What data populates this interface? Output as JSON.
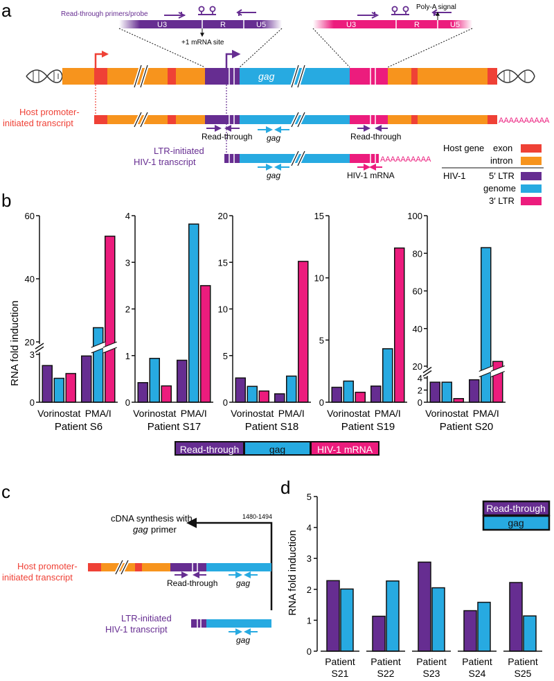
{
  "colors": {
    "exon": "#ef4136",
    "intron": "#f7941d",
    "ltr5": "#662d91",
    "genome": "#27aae1",
    "ltr3": "#ec1c7d",
    "host_label": "#ef4136",
    "hiv_label": "#662d91"
  },
  "panel_a": {
    "label": "a",
    "primers_label": "Read-through primers/probe",
    "u3": "U3",
    "r": "R",
    "u5": "U5",
    "mrna_site": "+1 mRNA site",
    "polya": "Poly-A signal",
    "gag": "gag",
    "host_transcript_line1": "Host promoter-",
    "host_transcript_line2": "initiated transcript",
    "ltr_transcript_line1": "LTR-initiated",
    "ltr_transcript_line2": "HIV-1 transcript",
    "read_through": "Read-through",
    "hiv_mrna": "HIV-1 mRNA",
    "polya_tail_host": "AAAAAAAAAA",
    "polya_tail_ltr": "AAAAAAAAAA",
    "legend": {
      "host_gene": "Host gene",
      "exon": "exon",
      "intron": "intron",
      "hiv1": "HIV-1",
      "ltr5": "5′ LTR",
      "genome": "genome",
      "ltr3": "3′ LTR"
    }
  },
  "panel_b": {
    "label": "b",
    "ylabel": "RNA fold induction",
    "legend": [
      "Read-through",
      "gag",
      "HIV-1 mRNA"
    ]
  },
  "panel_c": {
    "label": "c",
    "cdna_line1": "cDNA synthesis with",
    "cdna_line2": "primer",
    "cdna_gag": "gag",
    "position": "1480-1494",
    "host_line1": "Host promoter-",
    "host_line2": "initiated transcript",
    "ltr_line1": "LTR-initiated",
    "ltr_line2": "HIV-1 transcript",
    "read_through": "Read-through",
    "gag": "gag"
  },
  "panel_d": {
    "label": "d",
    "ylabel": "RNA fold induction"
  },
  "chart_data": [
    {
      "type": "bar",
      "title": "Patient S6",
      "ylabel": "RNA fold induction",
      "categories": [
        "Vorinostat",
        "PMA/I"
      ],
      "series": [
        {
          "name": "Read-through",
          "values": [
            2.3,
            2.9
          ]
        },
        {
          "name": "gag",
          "values": [
            1.5,
            24.5
          ]
        },
        {
          "name": "HIV-1 mRNA",
          "values": [
            1.8,
            53.5
          ]
        }
      ],
      "axis_break": {
        "lower": [
          0,
          3
        ],
        "upper": [
          20,
          60
        ]
      },
      "yticks": [
        0,
        3,
        20,
        40,
        60
      ]
    },
    {
      "type": "bar",
      "title": "Patient S17",
      "categories": [
        "Vorinostat",
        "PMA/I"
      ],
      "series": [
        {
          "name": "Read-through",
          "values": [
            0.42,
            0.9
          ]
        },
        {
          "name": "gag",
          "values": [
            0.94,
            3.82
          ]
        },
        {
          "name": "HIV-1 mRNA",
          "values": [
            0.35,
            2.5
          ]
        }
      ],
      "ylim": [
        0,
        4
      ],
      "yticks": [
        0,
        1,
        2,
        3,
        4
      ]
    },
    {
      "type": "bar",
      "title": "Patient S18",
      "categories": [
        "Vorinostat",
        "PMA/I"
      ],
      "series": [
        {
          "name": "Read-through",
          "values": [
            2.6,
            0.9
          ]
        },
        {
          "name": "gag",
          "values": [
            1.7,
            2.8
          ]
        },
        {
          "name": "HIV-1 mRNA",
          "values": [
            1.2,
            15.1
          ]
        }
      ],
      "ylim": [
        0,
        20
      ],
      "yticks": [
        0,
        5,
        10,
        15,
        20
      ]
    },
    {
      "type": "bar",
      "title": "Patient S19",
      "categories": [
        "Vorinostat",
        "PMA/I"
      ],
      "series": [
        {
          "name": "Read-through",
          "values": [
            1.2,
            1.3
          ]
        },
        {
          "name": "gag",
          "values": [
            1.7,
            4.3
          ]
        },
        {
          "name": "HIV-1 mRNA",
          "values": [
            0.8,
            12.4
          ]
        }
      ],
      "ylim": [
        0,
        15
      ],
      "yticks": [
        0,
        5,
        10,
        15
      ]
    },
    {
      "type": "bar",
      "title": "Patient S20",
      "categories": [
        "Vorinostat",
        "PMA/I"
      ],
      "series": [
        {
          "name": "Read-through",
          "values": [
            3.3,
            3.7
          ]
        },
        {
          "name": "gag",
          "values": [
            3.3,
            83
          ]
        },
        {
          "name": "HIV-1 mRNA",
          "values": [
            0.6,
            22.5
          ]
        }
      ],
      "axis_break": {
        "lower": [
          0,
          4
        ],
        "upper": [
          20,
          100
        ]
      },
      "yticks": [
        0,
        2,
        4,
        20,
        40,
        60,
        80,
        100
      ]
    },
    {
      "type": "bar",
      "title": "",
      "ylabel": "RNA fold induction",
      "categories": [
        "Patient S21",
        "Patient S22",
        "Patient S23",
        "Patient S24",
        "Patient S25"
      ],
      "series": [
        {
          "name": "Read-through",
          "values": [
            2.28,
            1.13,
            2.88,
            1.31,
            2.22
          ]
        },
        {
          "name": "gag",
          "values": [
            2.01,
            2.27,
            2.05,
            1.58,
            1.14
          ]
        }
      ],
      "ylim": [
        0,
        5
      ],
      "yticks": [
        0,
        1,
        2,
        3,
        4,
        5
      ],
      "legend": "top-right"
    }
  ]
}
